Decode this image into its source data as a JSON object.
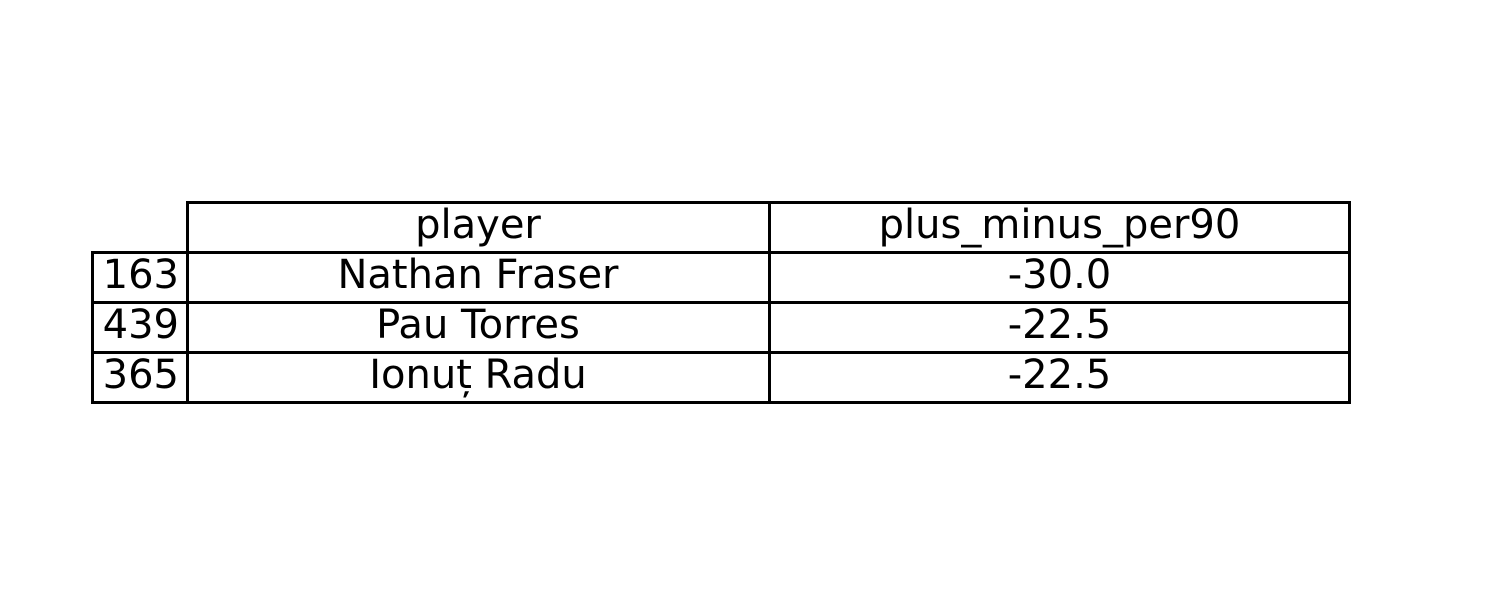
{
  "chart_data": {
    "type": "table",
    "columns": [
      "player",
      "plus_minus_per90"
    ],
    "rows": [
      {
        "index": "163",
        "player": "Nathan Fraser",
        "plus_minus_per90": "-30.0"
      },
      {
        "index": "439",
        "player": "Pau Torres",
        "plus_minus_per90": "-22.5"
      },
      {
        "index": "365",
        "player": "Ionuț Radu",
        "plus_minus_per90": "-22.5"
      }
    ]
  }
}
